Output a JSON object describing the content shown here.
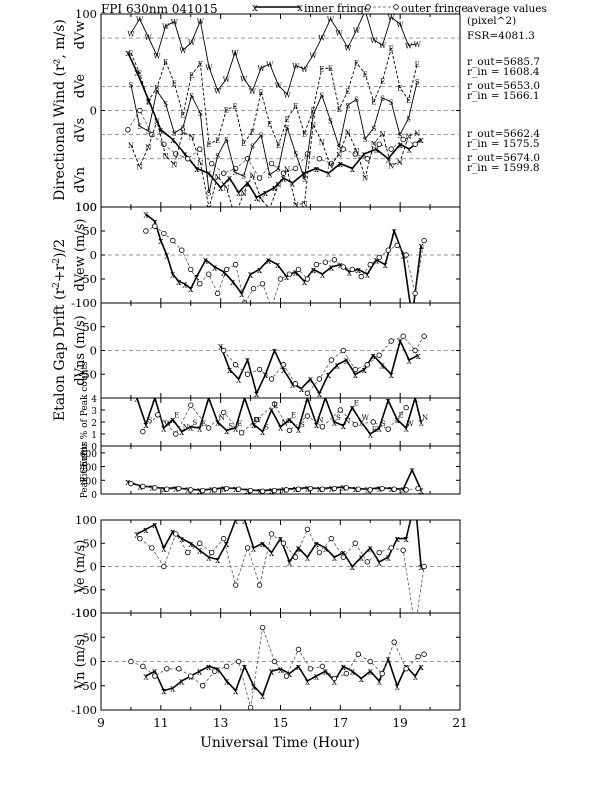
{
  "chart_data": {
    "type": "line",
    "title": "FPI 630nm 041015",
    "legend": {
      "inner": "inner fringe",
      "outer": "outer fringe",
      "placement": "top"
    },
    "xlabel": "Universal Time (Hour)",
    "xlim": [
      9,
      21
    ],
    "xticks": [
      "9",
      "11",
      "13",
      "15",
      "17",
      "19",
      "21"
    ],
    "side_notes": {
      "heading": "average values (pixel^2)",
      "fsr": "FSR=4081.3",
      "pairs": [
        {
          "out": "r_out=5685.7",
          "in": "r_in = 1608.4"
        },
        {
          "out": "r_out=5653.0",
          "in": "r_in = 1566.1"
        },
        {
          "out": "r_out=5662.4",
          "in": "r_in = 1575.5"
        },
        {
          "out": "r_out=5674.0",
          "in": "r_in = 1599.8"
        }
      ]
    },
    "panels": [
      {
        "id": "directional",
        "ylabel": "Directional Wind (r², m/s)",
        "ylim": [
          -100,
          100
        ],
        "yticks": [
          "100",
          "0",
          "100"
        ],
        "sublabels": [
          "dVw",
          "dVe",
          "dVs",
          "dVn"
        ],
        "series": [
          {
            "name": "x",
            "x": [
              9.9,
              10.2,
              10.6,
              11.0,
              11.4,
              11.8,
              12.2,
              12.6,
              13.0,
              13.3,
              13.6,
              13.9,
              14.2,
              14.5,
              14.8,
              15.1,
              15.4,
              15.8,
              16.2,
              16.6,
              17.0,
              17.4,
              17.8,
              18.2,
              18.6,
              19.0,
              19.3,
              19.7
            ],
            "y": [
              60,
              40,
              10,
              -20,
              -30,
              -45,
              -60,
              -65,
              -80,
              -70,
              -85,
              -75,
              -90,
              -85,
              -80,
              -70,
              -75,
              -65,
              -60,
              -65,
              -55,
              -60,
              -45,
              -40,
              -50,
              -35,
              -40,
              -30
            ]
          },
          {
            "name": "o",
            "x": [
              9.9,
              10.3,
              10.7,
              11.1,
              11.5,
              11.9,
              12.3,
              12.7,
              13.1,
              13.5,
              13.9,
              14.3,
              14.7,
              15.1,
              15.5,
              15.9,
              16.3,
              16.7,
              17.1,
              17.5,
              17.9,
              18.3,
              18.7,
              19.1,
              19.5
            ],
            "y": [
              -20,
              0,
              -25,
              -35,
              -45,
              -50,
              -40,
              -55,
              -65,
              -60,
              -50,
              -70,
              -55,
              -65,
              -60,
              -45,
              -50,
              -55,
              -40,
              -45,
              -50,
              -35,
              -40,
              -30,
              -35
            ]
          }
        ]
      },
      {
        "id": "gap-ew",
        "ylabel": "dVew (m/s)",
        "ylim": [
          -100,
          100
        ],
        "yticks": [
          "100",
          "50",
          "0",
          "-50",
          "-100"
        ],
        "series": [
          {
            "name": "inner fringe",
            "x": [
              10.5,
              10.8,
              11.0,
              11.2,
              11.4,
              11.6,
              11.8,
              12.0,
              12.2,
              12.5,
              12.8,
              13.1,
              13.4,
              13.7,
              14.0,
              14.3,
              14.6,
              14.9,
              15.2,
              15.5,
              15.8,
              16.1,
              16.4,
              16.7,
              17.0,
              17.3,
              17.6,
              17.9,
              18.2,
              18.5,
              18.8,
              19.1,
              19.4,
              19.7
            ],
            "y": [
              85,
              70,
              30,
              0,
              -40,
              -55,
              -60,
              -70,
              -45,
              -10,
              -25,
              -35,
              -55,
              -80,
              -40,
              -30,
              -10,
              -20,
              -45,
              -35,
              -55,
              -30,
              -40,
              -25,
              -20,
              -35,
              -30,
              -40,
              -10,
              -20,
              50,
              0,
              -130,
              20
            ]
          },
          {
            "name": "outer fringe",
            "x": [
              10.5,
              10.8,
              11.1,
              11.4,
              11.7,
              12.0,
              12.3,
              12.6,
              12.9,
              13.2,
              13.5,
              13.8,
              14.1,
              14.4,
              14.7,
              15.0,
              15.3,
              15.6,
              15.9,
              16.2,
              16.5,
              16.8,
              17.1,
              17.4,
              17.7,
              18.0,
              18.3,
              18.6,
              18.9,
              19.2,
              19.5,
              19.8
            ],
            "y": [
              50,
              60,
              45,
              30,
              10,
              -30,
              -60,
              -40,
              -80,
              -30,
              -20,
              -100,
              -70,
              -60,
              -110,
              -50,
              -40,
              -30,
              -50,
              -20,
              -15,
              -10,
              -25,
              -30,
              -45,
              -20,
              -5,
              10,
              20,
              0,
              -80,
              30
            ]
          }
        ]
      },
      {
        "id": "gap-ns",
        "ylabel": "dVns (m/s)",
        "ylim": [
          -100,
          100
        ],
        "yticks": [
          "50",
          "0",
          "-50"
        ],
        "series": [
          {
            "name": "inner fringe",
            "x": [
              13.0,
              13.3,
              13.6,
              13.9,
              14.2,
              14.5,
              14.8,
              15.1,
              15.4,
              15.7,
              16.0,
              16.3,
              16.6,
              16.9,
              17.2,
              17.5,
              17.8,
              18.1,
              18.4,
              18.7,
              19.0,
              19.3,
              19.6
            ],
            "y": [
              10,
              -40,
              -60,
              -20,
              -90,
              -50,
              0,
              -40,
              -70,
              -80,
              -60,
              -90,
              -50,
              -30,
              -20,
              -50,
              -40,
              -10,
              -30,
              -50,
              20,
              -20,
              -10
            ]
          },
          {
            "name": "outer fringe",
            "x": [
              13.1,
              13.5,
              13.9,
              14.3,
              14.7,
              15.1,
              15.5,
              15.9,
              16.3,
              16.7,
              17.1,
              17.5,
              17.9,
              18.3,
              18.7,
              19.1,
              19.5,
              19.8
            ],
            "y": [
              0,
              -30,
              -50,
              -40,
              -60,
              -30,
              -70,
              -90,
              -60,
              -20,
              0,
              -40,
              -30,
              -10,
              20,
              30,
              0,
              30
            ]
          }
        ]
      },
      {
        "id": "fit-error",
        "ylabel": "Fit Error % of Peak counts",
        "ylim": [
          0,
          4
        ],
        "yticks": [
          "4",
          "3",
          "2",
          "1",
          "0"
        ],
        "series": [
          {
            "name": "x",
            "x": [
              10.2,
              10.5,
              10.8,
              11.1,
              11.4,
              11.7,
              12.0,
              12.3,
              12.6,
              12.9,
              13.2,
              13.5,
              13.8,
              14.1,
              14.4,
              14.7,
              15.0,
              15.3,
              15.6,
              15.9,
              16.2,
              16.5,
              16.8,
              17.1,
              17.4,
              17.7,
              18.0,
              18.3,
              18.6,
              18.9,
              19.2,
              19.5,
              19.7
            ],
            "y": [
              4,
              1.8,
              4,
              1.5,
              2.2,
              1.2,
              1.6,
              1.5,
              4,
              2.0,
              1.3,
              1.5,
              4,
              1.8,
              1.2,
              3.0,
              1.6,
              2.2,
              1.4,
              4,
              1.8,
              4,
              2.0,
              1.7,
              3.2,
              2.0,
              1.0,
              1.5,
              3.8,
              2.2,
              1.5,
              4,
              2.0
            ]
          },
          {
            "name": "o",
            "x": [
              10.4,
              10.9,
              11.5,
              12.0,
              12.6,
              13.1,
              13.7,
              14.2,
              14.8,
              15.3,
              15.9,
              16.4,
              17.0,
              17.5,
              18.1,
              18.6,
              19.2
            ],
            "y": [
              1.2,
              2.6,
              1.0,
              3.4,
              1.5,
              2.8,
              1.1,
              2.2,
              3.5,
              1.3,
              2.5,
              1.6,
              3.0,
              1.8,
              2.0,
              1.4,
              3.2
            ]
          }
        ]
      },
      {
        "id": "peak-counts",
        "ylabel": "Peak Counts",
        "ylim": [
          0,
          700
        ],
        "yticks": [
          "600",
          "400",
          "200",
          "0"
        ],
        "series": [
          {
            "name": "inner fringe",
            "x": [
              9.9,
              10.3,
              10.7,
              11.1,
              11.5,
              11.9,
              12.3,
              12.7,
              13.1,
              13.5,
              13.9,
              14.3,
              14.7,
              15.1,
              15.5,
              15.9,
              16.3,
              16.7,
              17.1,
              17.5,
              17.9,
              18.3,
              18.7,
              19.1,
              19.4,
              19.7
            ],
            "y": [
              180,
              120,
              100,
              80,
              90,
              70,
              60,
              70,
              90,
              80,
              60,
              50,
              60,
              70,
              80,
              90,
              80,
              90,
              100,
              80,
              70,
              90,
              80,
              70,
              350,
              60
            ]
          },
          {
            "name": "outer fringe",
            "x": [
              10.0,
              10.4,
              10.8,
              11.2,
              11.6,
              12.0,
              12.4,
              12.8,
              13.2,
              13.6,
              14.0,
              14.4,
              14.8,
              15.2,
              15.6,
              16.0,
              16.4,
              16.8,
              17.2,
              17.6,
              18.0,
              18.4,
              18.8,
              19.2,
              19.6
            ],
            "y": [
              150,
              110,
              90,
              70,
              80,
              60,
              50,
              60,
              80,
              70,
              50,
              40,
              50,
              60,
              70,
              80,
              70,
              80,
              90,
              70,
              60,
              80,
              70,
              60,
              80
            ]
          }
        ]
      },
      {
        "id": "ve",
        "ylabel": "Ve (m/s)",
        "ylim": [
          -100,
          100
        ],
        "yticks": [
          "100",
          "50",
          "0",
          "-50",
          "-100"
        ],
        "series": [
          {
            "name": "inner fringe",
            "x": [
              10.2,
              10.5,
              10.8,
              11.1,
              11.4,
              11.7,
              12.0,
              12.3,
              12.6,
              12.9,
              13.2,
              13.5,
              13.8,
              14.1,
              14.4,
              14.7,
              15.0,
              15.3,
              15.6,
              15.9,
              16.2,
              16.5,
              16.8,
              17.1,
              17.4,
              17.7,
              18.0,
              18.3,
              18.6,
              18.9,
              19.2,
              19.5,
              19.7
            ],
            "y": [
              70,
              80,
              90,
              40,
              75,
              60,
              50,
              35,
              20,
              15,
              50,
              100,
              100,
              40,
              50,
              30,
              60,
              10,
              40,
              20,
              50,
              40,
              20,
              30,
              0,
              20,
              40,
              10,
              20,
              60,
              60,
              140,
              0
            ]
          },
          {
            "name": "outer fringe",
            "x": [
              10.3,
              10.7,
              11.1,
              11.5,
              11.9,
              12.3,
              12.7,
              13.1,
              13.5,
              13.9,
              14.3,
              14.7,
              15.1,
              15.5,
              15.9,
              16.3,
              16.7,
              17.1,
              17.5,
              17.9,
              18.3,
              18.7,
              19.1,
              19.5,
              19.8
            ],
            "y": [
              60,
              40,
              0,
              70,
              30,
              50,
              30,
              60,
              -40,
              40,
              -40,
              70,
              50,
              20,
              80,
              30,
              60,
              20,
              50,
              10,
              30,
              40,
              35,
              -130,
              0
            ]
          }
        ]
      },
      {
        "id": "vn",
        "ylabel": "Vn (m/s)",
        "ylim": [
          -100,
          100
        ],
        "yticks": [
          "100",
          "50",
          "0",
          "-50",
          "-100"
        ],
        "series": [
          {
            "name": "inner fringe",
            "x": [
              10.5,
              10.8,
              11.1,
              11.4,
              11.7,
              12.0,
              12.3,
              12.6,
              12.9,
              13.2,
              13.5,
              13.8,
              14.1,
              14.4,
              14.7,
              15.0,
              15.3,
              15.6,
              15.9,
              16.2,
              16.5,
              16.8,
              17.1,
              17.4,
              17.7,
              18.0,
              18.3,
              18.6,
              18.9,
              19.2,
              19.5,
              19.7
            ],
            "y": [
              -30,
              -20,
              -60,
              -55,
              -40,
              -30,
              -20,
              -10,
              -15,
              -40,
              -60,
              -10,
              -50,
              -70,
              -20,
              -15,
              -25,
              -10,
              -40,
              -30,
              -20,
              -40,
              -10,
              -20,
              -35,
              -20,
              -40,
              5,
              -50,
              -10,
              -30,
              -10
            ]
          },
          {
            "name": "outer fringe",
            "x": [
              10.0,
              10.4,
              10.8,
              11.2,
              11.6,
              12.0,
              12.4,
              12.8,
              13.2,
              13.6,
              14.0,
              14.4,
              14.8,
              15.2,
              15.6,
              16.0,
              16.4,
              16.8,
              17.2,
              17.6,
              18.0,
              18.4,
              18.8,
              19.2,
              19.6,
              19.8
            ],
            "y": [
              0,
              -10,
              -30,
              -15,
              -15,
              -30,
              -50,
              -20,
              -10,
              0,
              -95,
              70,
              0,
              -30,
              25,
              -15,
              -10,
              -35,
              -25,
              15,
              0,
              -25,
              40,
              -15,
              10,
              15
            ]
          }
        ]
      }
    ]
  }
}
